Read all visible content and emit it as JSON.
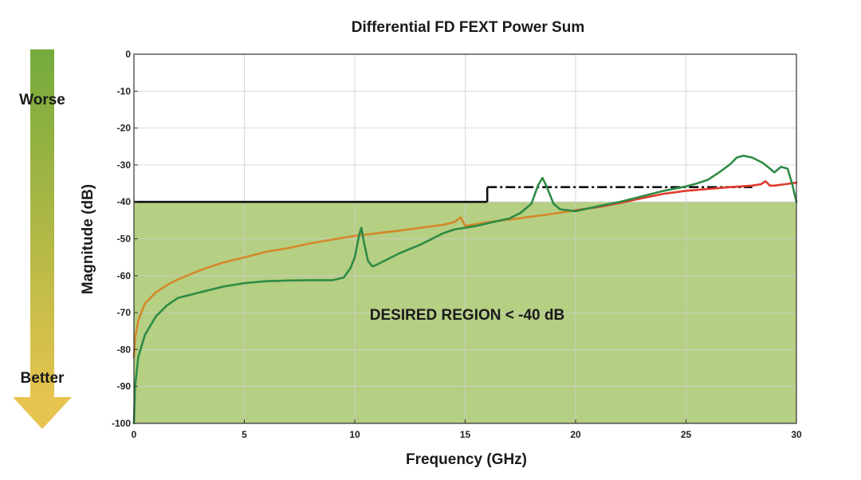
{
  "chart_data": {
    "type": "line",
    "title": "Differential FD FEXT Power Sum",
    "xlabel": "Frequency (GHz)",
    "ylabel": "Magnitude (dB)",
    "xlim": [
      0,
      30
    ],
    "ylim": [
      -100,
      0
    ],
    "x_ticks": [
      0,
      5,
      10,
      15,
      20,
      25,
      30
    ],
    "y_ticks": [
      0,
      -10,
      -20,
      -30,
      -40,
      -50,
      -60,
      -70,
      -80,
      -90,
      -100
    ],
    "grid": true,
    "desired_region": {
      "label": "DESIRED REGION < -40 dB",
      "y_max": -40,
      "color": "#b5cf83"
    },
    "side_indicator": {
      "top_label": "Worse",
      "bottom_label": "Better",
      "top_color": "#74ab3c",
      "bottom_color": "#e7c44f"
    },
    "series": [
      {
        "color": "#d4882a",
        "x": [
          0.0,
          0.05,
          0.2,
          0.5,
          1.0,
          1.5,
          2.0,
          3.0,
          4.0,
          5.0,
          6.0,
          7.0,
          8.0,
          9.0,
          10.0,
          11.0,
          12.0,
          13.0,
          14.0,
          14.5,
          14.8,
          15.0,
          15.5,
          16.0,
          17.0,
          18.0,
          19.0,
          20.0
        ],
        "y": [
          -82,
          -77,
          -72,
          -67.5,
          -64.5,
          -62.5,
          -61,
          -58.5,
          -56.5,
          -55,
          -53.5,
          -52.5,
          -51.2,
          -50.2,
          -49.2,
          -48.5,
          -47.8,
          -47.0,
          -46.2,
          -45.5,
          -44.2,
          -46.5,
          -46.0,
          -45.5,
          -44.8,
          -44.0,
          -43.2,
          -42.3
        ]
      },
      {
        "color": "#e03a28",
        "x": [
          20.0,
          21.0,
          22.0,
          23.0,
          24.0,
          25.0,
          26.0,
          27.0,
          28.0,
          28.4,
          28.6,
          28.8,
          29.0,
          29.5,
          30.0
        ],
        "y": [
          -42.3,
          -41.4,
          -40.3,
          -39.0,
          -37.8,
          -37.0,
          -36.5,
          -36.0,
          -35.6,
          -35.2,
          -34.4,
          -35.6,
          -35.6,
          -35.2,
          -34.8
        ]
      },
      {
        "color": "#2e8b45",
        "x": [
          0.0,
          0.05,
          0.2,
          0.5,
          1.0,
          1.5,
          2.0,
          3.0,
          4.0,
          5.0,
          6.0,
          7.0,
          8.0,
          9.0,
          9.5,
          9.8,
          10.0,
          10.2,
          10.3,
          10.4,
          10.6,
          10.8,
          11.0,
          12.0,
          13.0,
          14.0,
          14.5,
          15.0,
          15.5,
          16.0,
          17.0,
          17.5,
          18.0,
          18.3,
          18.5,
          18.7,
          19.0,
          19.3,
          20.0,
          21.0,
          22.0,
          23.0,
          24.0,
          25.0,
          25.5,
          26.0,
          26.5,
          27.0,
          27.3,
          27.6,
          28.0,
          28.5,
          28.8,
          29.0,
          29.3,
          29.6,
          29.8,
          30.0
        ],
        "y": [
          -100,
          -90,
          -82,
          -76,
          -71,
          -68,
          -66,
          -64.5,
          -63,
          -62,
          -61.5,
          -61.3,
          -61.2,
          -61.2,
          -60.5,
          -58.0,
          -55.0,
          -49.0,
          -47.0,
          -50.5,
          -56.0,
          -57.5,
          -57.0,
          -54.0,
          -51.5,
          -48.5,
          -47.5,
          -47.0,
          -46.5,
          -45.8,
          -44.5,
          -43.0,
          -40.5,
          -35.5,
          -33.5,
          -36.0,
          -40.5,
          -42.0,
          -42.5,
          -41.2,
          -40.0,
          -38.5,
          -37.0,
          -35.8,
          -35.0,
          -34.0,
          -32.0,
          -29.8,
          -28.0,
          -27.5,
          -28.0,
          -29.5,
          -31.0,
          -32.0,
          -30.5,
          -31.0,
          -35.0,
          -40.0
        ]
      }
    ],
    "limit_line": {
      "color": "#111111",
      "solid": {
        "x": [
          0,
          16
        ],
        "y": -40
      },
      "dashed": {
        "x": [
          16,
          28
        ],
        "y": -36
      }
    }
  }
}
